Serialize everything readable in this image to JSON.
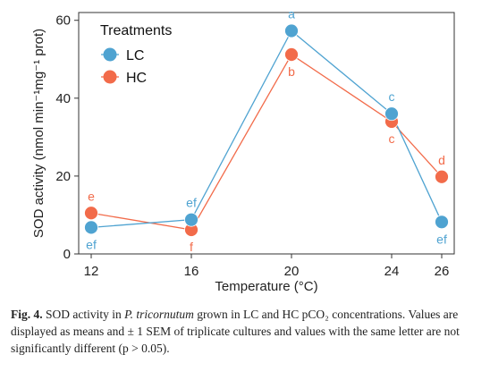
{
  "chart_data": {
    "type": "line",
    "xlabel": "Temperature (°C)",
    "ylabel": "SOD activity (nmol min⁻¹mg⁻¹ prot)",
    "x": [
      12,
      16,
      20,
      24,
      26
    ],
    "xticks": [
      "12",
      "16",
      "20",
      "24",
      "26"
    ],
    "yticks": [
      0,
      20,
      40,
      60
    ],
    "ylim": [
      0,
      62
    ],
    "legend": {
      "title": "Treatments",
      "position": "top-left"
    },
    "series": [
      {
        "name": "LC",
        "color": "#4fa3d1",
        "values": [
          6.8,
          8.8,
          57.3,
          36.0,
          8.2
        ],
        "sem": [
          0.5,
          0.5,
          1.0,
          1.0,
          0.5
        ],
        "labels": [
          "ef",
          "ef",
          "a",
          "c",
          "ef"
        ]
      },
      {
        "name": "HC",
        "color": "#f26b4a",
        "values": [
          10.5,
          6.2,
          51.2,
          34.0,
          19.8
        ],
        "sem": [
          0.6,
          0.5,
          1.8,
          1.0,
          0.5
        ],
        "labels": [
          "e",
          "f",
          "b",
          "c",
          "d"
        ]
      }
    ]
  },
  "caption": {
    "fig_label": "Fig. 4.",
    "text_1": "SOD activity in",
    "species": "P. tricornutum",
    "text_2": "grown in LC and HC pCO₂ concentrations. Values are displayed as means and ± 1 SEM of triplicate cultures and values with the same letter are not significantly different (p > 0.05)."
  }
}
